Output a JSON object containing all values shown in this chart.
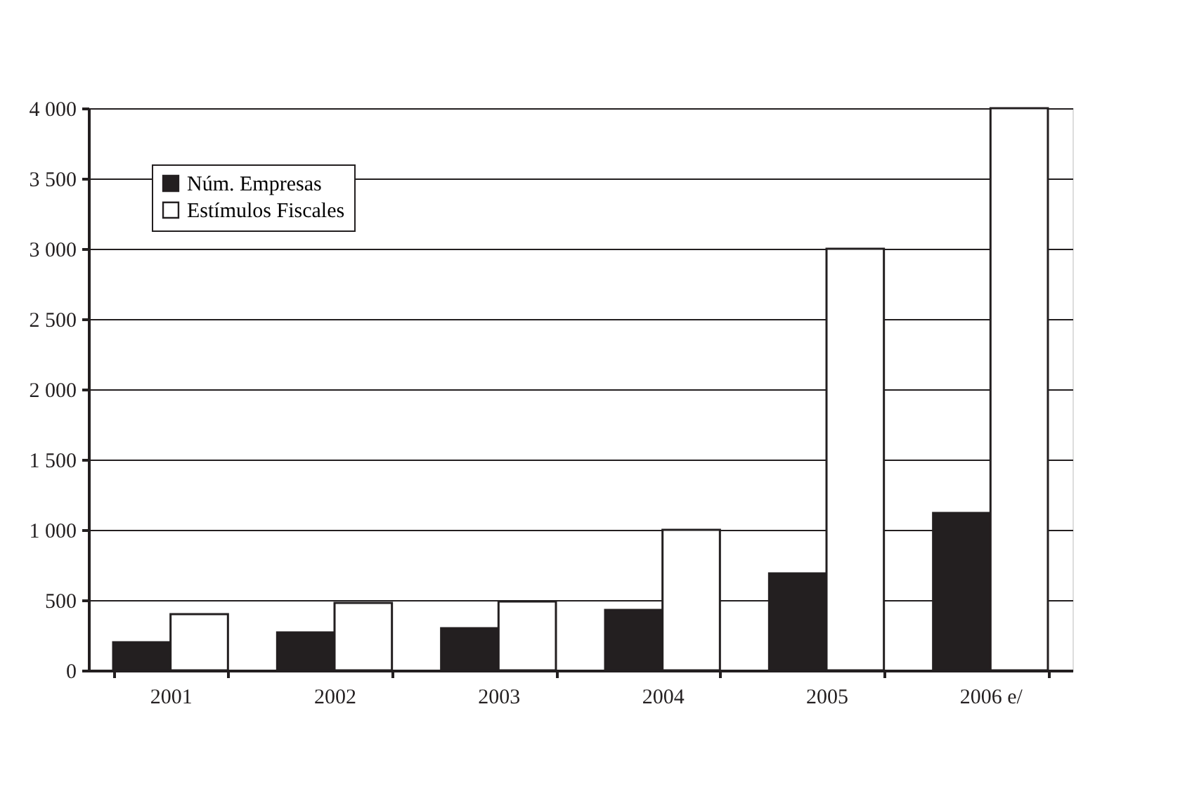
{
  "chart_data": {
    "type": "bar",
    "categories": [
      "2001",
      "2002",
      "2003",
      "2004",
      "2005",
      "2006 e/"
    ],
    "series": [
      {
        "name": "Núm. Empresas",
        "color": "#231f20",
        "values": [
          200,
          270,
          300,
          430,
          690,
          1120
        ]
      },
      {
        "name": "Estímulos Fiscales",
        "color": "#ffffff",
        "values": [
          400,
          480,
          490,
          1000,
          3000,
          4000
        ]
      }
    ],
    "ylim": [
      0,
      4000
    ],
    "yticks": [
      0,
      500,
      {
        "value": 1000,
        "label": "1 000"
      },
      {
        "value": 1500,
        "label": "1 500"
      },
      {
        "value": 2000,
        "label": "2 000"
      },
      {
        "value": 2500,
        "label": "2 500"
      },
      {
        "value": 3000,
        "label": "3 000"
      },
      {
        "value": 3500,
        "label": "3 500"
      },
      {
        "value": 4000,
        "label": "4 000"
      }
    ],
    "grid": "y",
    "legend": "top left"
  }
}
